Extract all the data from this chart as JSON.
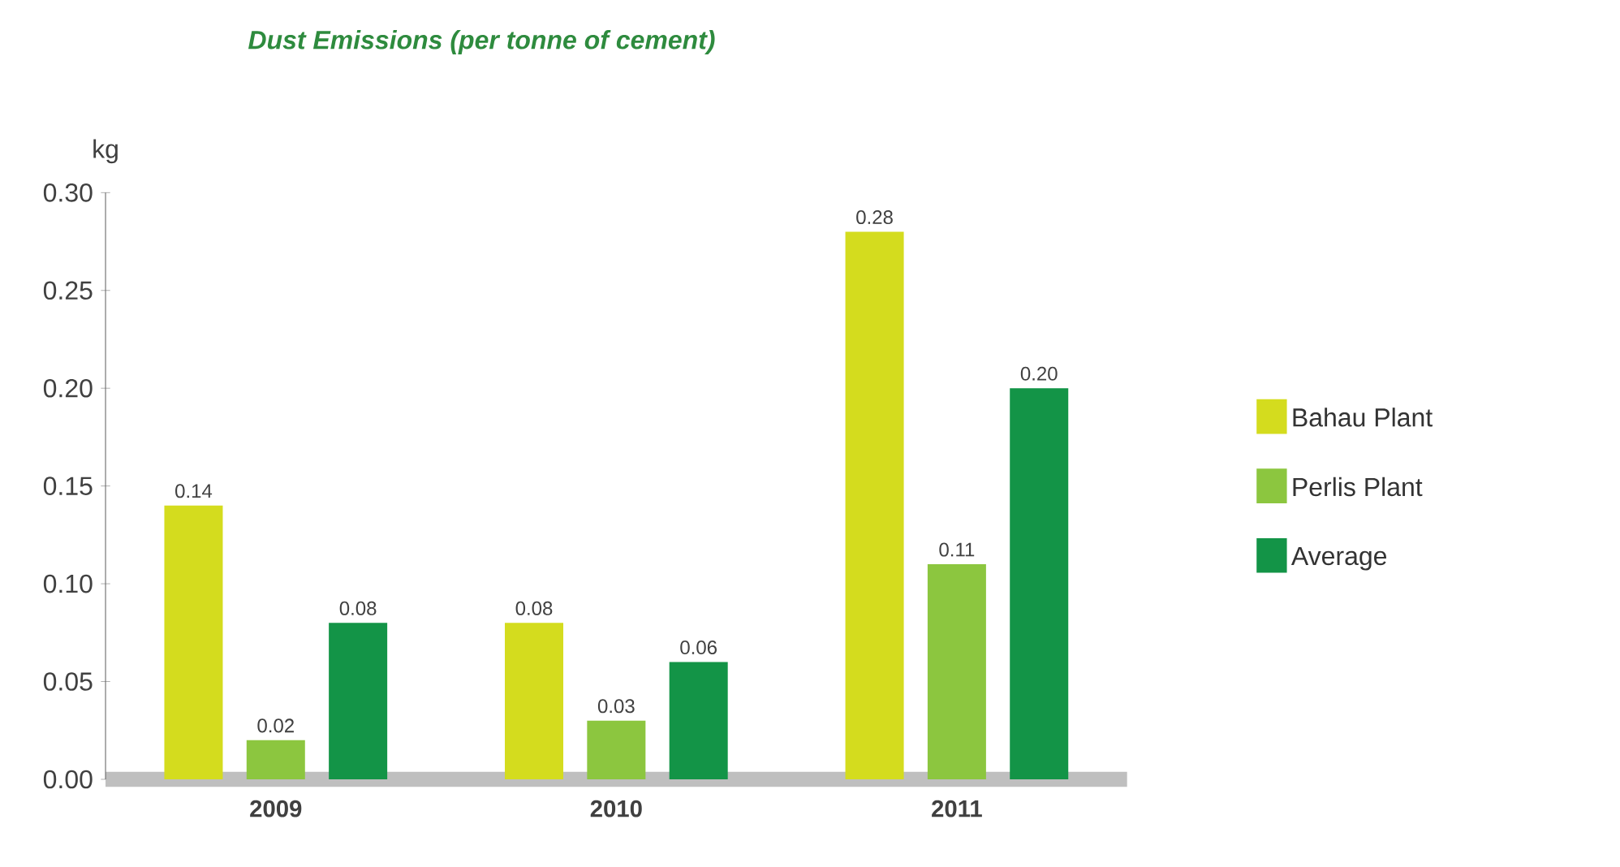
{
  "chart_data": {
    "type": "bar",
    "title": "Dust Emissions (per tonne of cement)",
    "ylabel": "kg",
    "categories": [
      "2009",
      "2010",
      "2011"
    ],
    "series": [
      {
        "name": "Bahau Plant",
        "color": "#d4dc1e",
        "values": [
          0.14,
          0.08,
          0.28
        ],
        "value_labels": [
          "0.14",
          "0.08",
          "0.28"
        ]
      },
      {
        "name": "Perlis Plant",
        "color": "#8cc63f",
        "values": [
          0.02,
          0.03,
          0.11
        ],
        "value_labels": [
          "0.02",
          "0.03",
          "0.11"
        ]
      },
      {
        "name": "Average",
        "color": "#139447",
        "values": [
          0.08,
          0.06,
          0.2
        ],
        "value_labels": [
          "0.08",
          "0.06",
          "0.20"
        ]
      }
    ],
    "ylim": [
      0,
      0.3
    ],
    "yticks": [
      {
        "value": 0,
        "label": "0.00"
      },
      {
        "value": 0.05,
        "label": "0.05"
      },
      {
        "value": 0.1,
        "label": "0.10"
      },
      {
        "value": 0.15,
        "label": "0.15"
      },
      {
        "value": 0.2,
        "label": "0.20"
      },
      {
        "value": 0.25,
        "label": "0.25"
      },
      {
        "value": 0.3,
        "label": "0.30"
      }
    ],
    "grid": false,
    "legend": "right"
  }
}
